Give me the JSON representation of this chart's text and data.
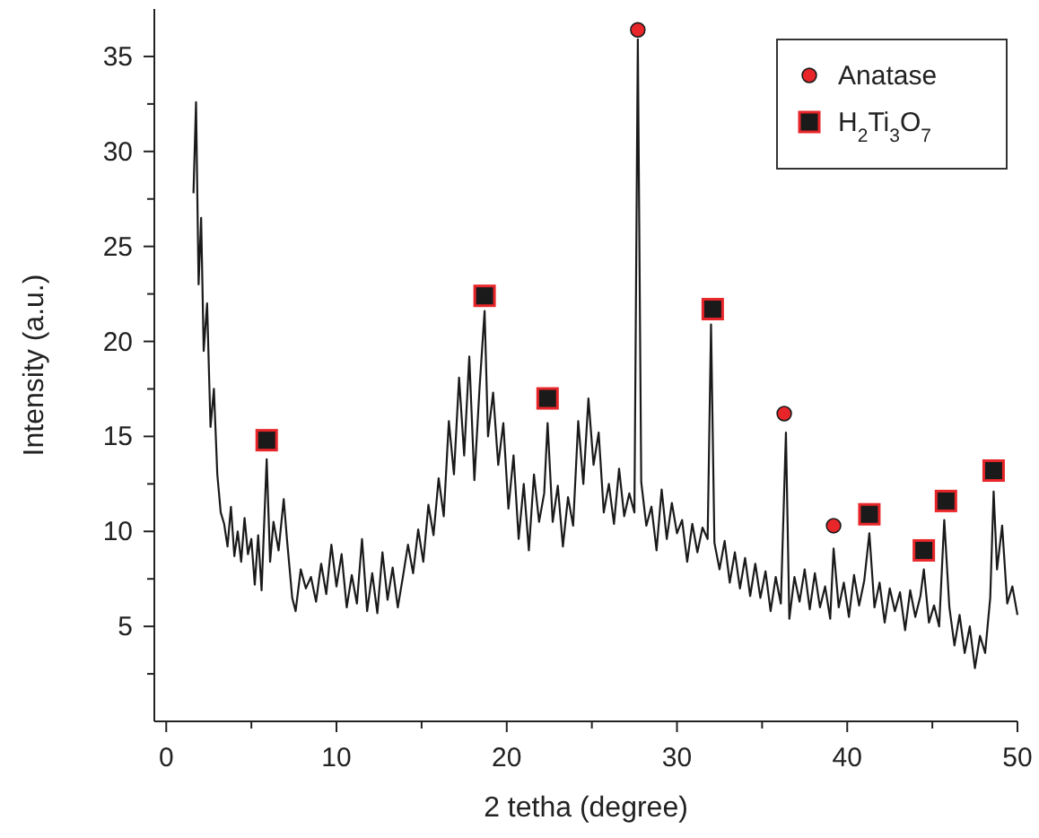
{
  "chart_data": {
    "type": "line",
    "xlabel": "2 tetha (degree)",
    "ylabel": "Intensity (a.u.)",
    "xlim": [
      -0.7,
      50
    ],
    "ylim": [
      0,
      37.5
    ],
    "xticks": [
      0,
      {
        "value": 5,
        "label": null
      },
      10,
      {
        "value": 15,
        "label": null
      },
      20,
      {
        "value": 25,
        "label": null
      },
      30,
      {
        "value": 35,
        "label": null
      },
      40,
      {
        "value": 45,
        "label": null
      },
      50
    ],
    "yticks": [
      {
        "value": 2.5,
        "label": null
      },
      5,
      {
        "value": 7.5,
        "label": null
      },
      10,
      {
        "value": 12.5,
        "label": null
      },
      15,
      {
        "value": 17.5,
        "label": null
      },
      20,
      {
        "value": 22.5,
        "label": null
      },
      25,
      {
        "value": 27.5,
        "label": null
      },
      30,
      {
        "value": 32.5,
        "label": null
      },
      35
    ],
    "grid": false,
    "legend": "top right",
    "series": [
      {
        "color": "#1a1a1a",
        "line_style": "solid",
        "x": [
          1.6,
          1.75,
          1.9,
          2.05,
          2.2,
          2.4,
          2.6,
          2.8,
          3.0,
          3.2,
          3.4,
          3.6,
          3.8,
          4.0,
          4.2,
          4.4,
          4.6,
          4.8,
          5.0,
          5.2,
          5.4,
          5.6,
          5.9,
          6.1,
          6.3,
          6.6,
          6.9,
          7.1,
          7.4,
          7.6,
          7.9,
          8.2,
          8.5,
          8.8,
          9.1,
          9.4,
          9.7,
          10.0,
          10.3,
          10.6,
          10.9,
          11.2,
          11.5,
          11.8,
          12.1,
          12.4,
          12.7,
          13.0,
          13.3,
          13.6,
          13.9,
          14.2,
          14.5,
          14.8,
          15.1,
          15.4,
          15.7,
          16.0,
          16.3,
          16.6,
          16.9,
          17.2,
          17.5,
          17.8,
          18.1,
          18.4,
          18.7,
          18.9,
          19.2,
          19.5,
          19.8,
          20.1,
          20.4,
          20.7,
          21.0,
          21.3,
          21.6,
          21.9,
          22.2,
          22.4,
          22.7,
          23.0,
          23.3,
          23.6,
          23.9,
          24.2,
          24.5,
          24.8,
          25.1,
          25.4,
          25.7,
          26.0,
          26.3,
          26.6,
          26.9,
          27.2,
          27.5,
          27.7,
          27.9,
          28.2,
          28.5,
          28.8,
          29.1,
          29.4,
          29.7,
          30.0,
          30.3,
          30.6,
          30.9,
          31.2,
          31.5,
          31.8,
          32.0,
          32.2,
          32.5,
          32.8,
          33.1,
          33.4,
          33.7,
          34.0,
          34.3,
          34.6,
          34.9,
          35.2,
          35.5,
          35.8,
          36.1,
          36.4,
          36.6,
          36.9,
          37.2,
          37.5,
          37.8,
          38.1,
          38.4,
          38.7,
          39.0,
          39.2,
          39.5,
          39.8,
          40.1,
          40.4,
          40.7,
          41.0,
          41.3,
          41.6,
          41.9,
          42.2,
          42.5,
          42.8,
          43.1,
          43.4,
          43.7,
          44.0,
          44.3,
          44.5,
          44.8,
          45.1,
          45.4,
          45.7,
          46.0,
          46.3,
          46.6,
          46.9,
          47.2,
          47.5,
          47.8,
          48.1,
          48.4,
          48.6,
          48.8,
          49.1,
          49.4,
          49.7,
          50.0
        ],
        "values": [
          27.8,
          32.6,
          23,
          26.5,
          19.5,
          22,
          15.5,
          17.5,
          13,
          11,
          10.4,
          9.2,
          11.3,
          8.7,
          10,
          8.4,
          10.7,
          8.8,
          9.6,
          7.2,
          9.8,
          6.9,
          13.8,
          8.4,
          10.5,
          9.0,
          11.7,
          9.5,
          6.5,
          5.8,
          8.0,
          7.0,
          7.6,
          6.3,
          8.3,
          6.7,
          9.3,
          7.1,
          8.8,
          6.0,
          7.7,
          6.2,
          9.6,
          5.8,
          7.8,
          5.7,
          8.9,
          6.4,
          8.1,
          6.0,
          7.6,
          9.3,
          7.8,
          10.1,
          8.4,
          11.4,
          9.8,
          12.8,
          10.8,
          15.8,
          13.0,
          18.1,
          14.0,
          19.2,
          12.7,
          17.5,
          21.6,
          15.0,
          17.3,
          13.5,
          15.7,
          11.2,
          14.0,
          9.6,
          12.5,
          9.0,
          13.0,
          10.5,
          12.0,
          15.7,
          10.5,
          12.4,
          9.2,
          11.8,
          10.3,
          15.8,
          12.5,
          17.0,
          13.5,
          15.2,
          11.0,
          12.5,
          10.4,
          13.3,
          10.8,
          12.0,
          11.0,
          35.9,
          12.6,
          10.3,
          11.3,
          9.0,
          12.2,
          9.6,
          11.5,
          9.9,
          10.6,
          8.4,
          10.4,
          8.9,
          10.2,
          9.6,
          20.9,
          9.4,
          8.0,
          9.5,
          7.3,
          8.9,
          7.0,
          8.6,
          6.6,
          8.3,
          6.5,
          7.9,
          5.8,
          7.6,
          6.2,
          15.2,
          5.4,
          7.6,
          6.3,
          8.0,
          5.9,
          7.8,
          6.0,
          7.1,
          5.4,
          9.1,
          6.0,
          7.3,
          5.5,
          7.7,
          6.1,
          7.4,
          9.9,
          6.0,
          7.3,
          5.2,
          7.0,
          5.8,
          6.8,
          4.8,
          6.9,
          5.5,
          6.6,
          8.0,
          5.2,
          6.1,
          5.0,
          10.6,
          6.0,
          4.0,
          5.6,
          3.6,
          5.0,
          2.8,
          4.5,
          3.6,
          6.5,
          12.1,
          8.0,
          10.3,
          6.2,
          7.1,
          5.6
        ]
      },
      {
        "type": "scatter",
        "name": "Anatase",
        "color": "#e8262a",
        "marker": "circle",
        "x": [
          27.7,
          36.3,
          39.2
        ],
        "values": [
          36.4,
          16.2,
          10.3
        ]
      },
      {
        "type": "scatter",
        "name": "H$_{2}$Ti$_{3}$O$_{7}$",
        "color": "#1a1a1a",
        "marker": "square",
        "x": [
          5.9,
          18.7,
          22.4,
          32.1,
          41.3,
          44.5,
          45.8,
          48.6
        ],
        "values": [
          14.8,
          22.4,
          17.0,
          21.7,
          10.9,
          9.0,
          11.6,
          13.2
        ]
      }
    ]
  }
}
